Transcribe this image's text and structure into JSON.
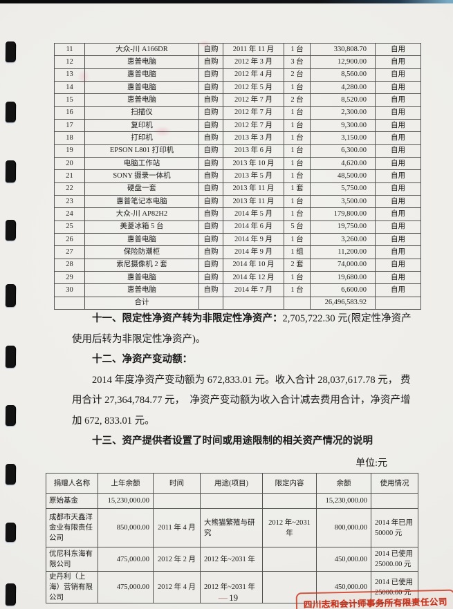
{
  "asset_table": {
    "rows": [
      {
        "no": "11",
        "name": "大众-川 A166DR",
        "src": "自购",
        "date": "2011 年 11 月",
        "qty": "1 台",
        "amount": "330,808.70",
        "use": "自用"
      },
      {
        "no": "12",
        "name": "惠普电脑",
        "src": "自购",
        "date": "2012 年 3 月",
        "qty": "3 台",
        "amount": "12,900.00",
        "use": "自用"
      },
      {
        "no": "13",
        "name": "惠普电脑",
        "src": "自购",
        "date": "2012 年 4 月",
        "qty": "2 台",
        "amount": "8,560.00",
        "use": "自用"
      },
      {
        "no": "14",
        "name": "惠普电脑",
        "src": "自购",
        "date": "2012 年 5 月",
        "qty": "1 台",
        "amount": "4,280.00",
        "use": "自用"
      },
      {
        "no": "15",
        "name": "惠普电脑",
        "src": "自购",
        "date": "2012 年 7 月",
        "qty": "2 台",
        "amount": "8,520.00",
        "use": "自用"
      },
      {
        "no": "16",
        "name": "扫描仪",
        "src": "自购",
        "date": "2012 年 7 月",
        "qty": "1 台",
        "amount": "2,300.00",
        "use": "自用"
      },
      {
        "no": "17",
        "name": "复印机",
        "src": "自购",
        "date": "2012 年 7 月",
        "qty": "1 台",
        "amount": "9,300.00",
        "use": "自用"
      },
      {
        "no": "18",
        "name": "打印机",
        "src": "自购",
        "date": "2013 年 3 月",
        "qty": "1 台",
        "amount": "3,150.00",
        "use": "自用"
      },
      {
        "no": "19",
        "name": "EPSON L801 打印机",
        "src": "自购",
        "date": "2013 年 6 月",
        "qty": "1 台",
        "amount": "6,300.00",
        "use": "自用"
      },
      {
        "no": "20",
        "name": "电脑工作站",
        "src": "自购",
        "date": "2013 年 10 月",
        "qty": "1 台",
        "amount": "4,620.00",
        "use": "自用"
      },
      {
        "no": "21",
        "name": "SONY 摄录一体机",
        "src": "自购",
        "date": "2013 年 5 月",
        "qty": "1 台",
        "amount": "48,500.00",
        "use": "自用"
      },
      {
        "no": "22",
        "name": "硬盘一套",
        "src": "自购",
        "date": "2013 年 11 月",
        "qty": "1 套",
        "amount": "5,750.00",
        "use": "自用"
      },
      {
        "no": "23",
        "name": "惠普笔记本电脑",
        "src": "自购",
        "date": "2013 年 11 月",
        "qty": "1 台",
        "amount": "3,500.00",
        "use": "自用"
      },
      {
        "no": "24",
        "name": "大众-川 AP82H2",
        "src": "自购",
        "date": "2014 年 5 月",
        "qty": "1 台",
        "amount": "179,800.00",
        "use": "自用"
      },
      {
        "no": "25",
        "name": "美菱冰箱 5 台",
        "src": "自购",
        "date": "2014 年 6 月",
        "qty": "5 台",
        "amount": "19,750.00",
        "use": "自用"
      },
      {
        "no": "26",
        "name": "惠普电脑",
        "src": "自购",
        "date": "2014 年 9 月",
        "qty": "1 台",
        "amount": "3,260.00",
        "use": "自用"
      },
      {
        "no": "27",
        "name": "保险防潮柜",
        "src": "自购",
        "date": "2014 年 9 月",
        "qty": "1 组",
        "amount": "11,200.00",
        "use": "自用"
      },
      {
        "no": "28",
        "name": "索尼摄像机 2 套",
        "src": "自购",
        "date": "2014 年 10 月",
        "qty": "2 套",
        "amount": "74,000.00",
        "use": "自用"
      },
      {
        "no": "29",
        "name": "惠普电脑",
        "src": "自购",
        "date": "2014 年 12 月",
        "qty": "1 台",
        "amount": "19,680.00",
        "use": "自用"
      },
      {
        "no": "30",
        "name": "惠普电脑",
        "src": "自购",
        "date": "2014 年 7 月",
        "qty": "1 台",
        "amount": "6,600.00",
        "use": "自用"
      },
      {
        "no": "",
        "name": "合计",
        "src": "",
        "date": "",
        "qty": "",
        "amount": "26,496,583.92",
        "use": ""
      }
    ]
  },
  "narrative": [
    {
      "indent": true,
      "bold": "十一、限定性净资产转为非限定性净资产：",
      "text": "2,705,722.30 元(限定性净资产"
    },
    {
      "indent": false,
      "bold": "",
      "text": "使用后转为非限定性净资产)。"
    },
    {
      "indent": true,
      "bold": "十二、净资产变动额：",
      "text": ""
    },
    {
      "indent": true,
      "bold": "",
      "text": "2014 年度净资产变动额为 672,833.01 元。收入合计 28,037,617.78 元， 费"
    },
    {
      "indent": false,
      "bold": "",
      "text": "用合计 27,364,784.77 元，　净资产变动额为收入合计减去费用合计，净资产增"
    },
    {
      "indent": false,
      "bold": "",
      "text": "加 672, 833.01 元。"
    },
    {
      "indent": true,
      "bold": "十三、资产提供者设置了时间或用途限制的相关资产情况的说明",
      "text": ""
    }
  ],
  "unit_label": "单位:元",
  "donation_table": {
    "headers": [
      "捐赠人名称",
      "上年余额",
      "时间",
      "用途(项目)",
      "限定内容",
      "余额",
      "使用情况"
    ],
    "rows": [
      {
        "donor": "原始基金",
        "prev": "15,230,000.00",
        "time": "",
        "purp": "",
        "restr": "",
        "bal": "15,230,000.00",
        "usage": ""
      },
      {
        "donor": "成都市天鑫洋金业有限责任公司",
        "prev": "850,000.00",
        "time": "2011 年 4 月",
        "purp": "大熊猫繁殖与研究",
        "restr": "2012 年~2031 年",
        "bal": "800,000.00",
        "usage": "2014 年已用 50000 元"
      },
      {
        "donor": "优尼科东海有限公司",
        "prev": "475,000.00",
        "time": "2012 年 2 月",
        "purp": "2012 年~2031 年",
        "restr": "",
        "bal": "450,000.00",
        "usage": "2014 已使用 25000.00 元"
      },
      {
        "donor": "史丹利（上海）营销有限公司",
        "prev": "475,000.00",
        "time": "2012 年 4 月",
        "purp": "2012 年~2031 年",
        "restr": "",
        "bal": "450,000.00",
        "usage": "2014 已使用 25000.00 元"
      }
    ]
  },
  "footer": {
    "page_dash": "—",
    "page_number": "19"
  },
  "stamp": {
    "text": "四川志和会计师事务所有限责任公司",
    "color": "#c7321c"
  }
}
